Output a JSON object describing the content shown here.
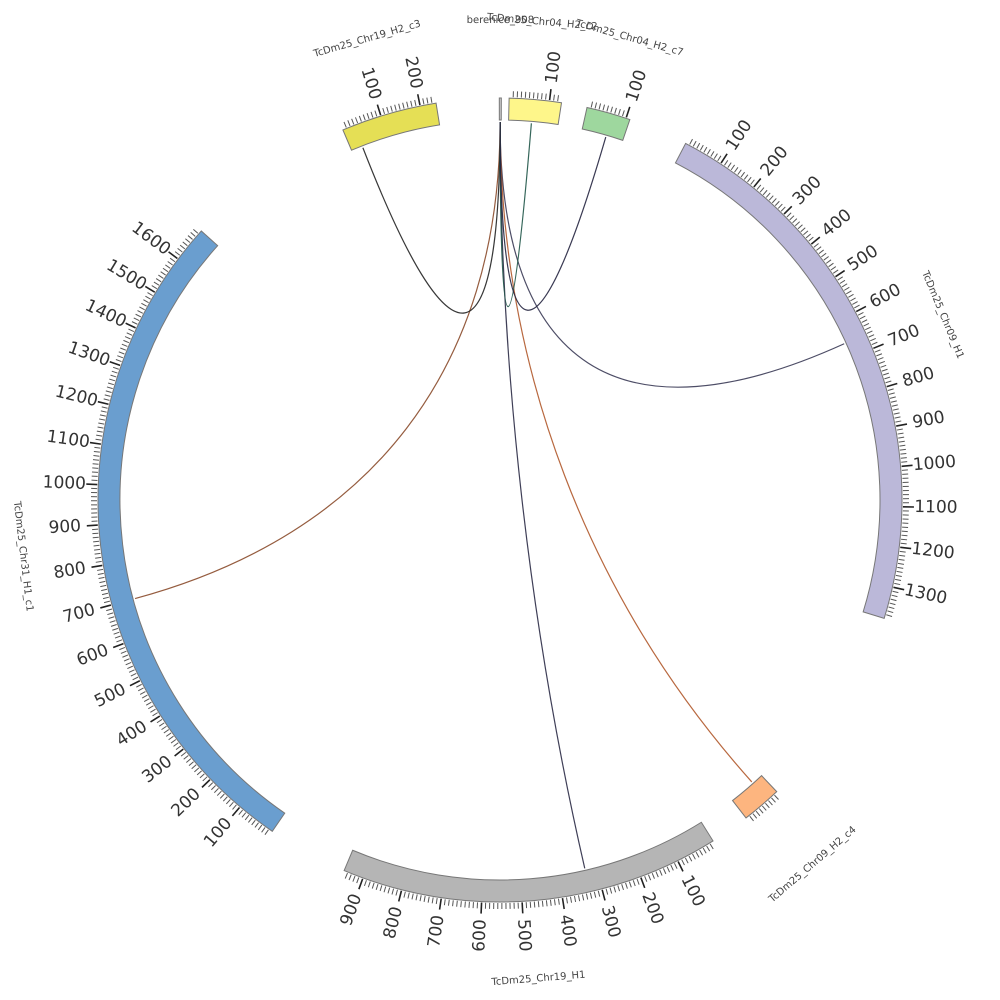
{
  "chart_data": {
    "type": "chord",
    "title": "",
    "unit_note": "",
    "segments": [
      {
        "id": "chr09h1",
        "name": "TcDm25_Chr09_H1",
        "length": 1380,
        "color": "#bbb8d9",
        "start_angle": 27.5,
        "tick_step": 100,
        "minor_step": 10
      },
      {
        "id": "chr09c4",
        "name": "TcDm25_Chr09_H2_c4",
        "length": 100,
        "color": "#fdb57f",
        "start_angle": 136.5,
        "tick_step": 100,
        "minor_step": 10
      },
      {
        "id": "chr19h1",
        "name": "TcDm25_Chr19_H1",
        "length": 950,
        "color": "#b5b5b5",
        "start_angle": 148.0,
        "tick_step": 100,
        "minor_step": 10
      },
      {
        "id": "chr31",
        "name": "TcDm25_Chr31_H1_c1",
        "length": 1690,
        "color": "#6a9ecf",
        "start_angle": 214.5,
        "tick_step": 100,
        "minor_step": 10
      },
      {
        "id": "chr19c3",
        "name": "TcDm25_Chr19_H2_c3",
        "length": 240,
        "color": "#e5df55",
        "start_angle": 337.0,
        "tick_step": 100,
        "minor_step": 10
      },
      {
        "id": "bere",
        "name": "berenice_908",
        "length": 5,
        "color": "#cccccc",
        "start_angle": 359.9,
        "tick_step": 100,
        "minor_step": 10
      },
      {
        "id": "chr04c2",
        "name": "TcDm25_Chr04_H2_c2",
        "length": 130,
        "color": "#fef68a",
        "start_angle": 1.3,
        "tick_step": 100,
        "minor_step": 10
      },
      {
        "id": "chr04c7",
        "name": "TcDm25_Chr04_H2_c7",
        "length": 110,
        "color": "#9ed79e",
        "start_angle": 12.5,
        "tick_step": 100,
        "minor_step": 10
      }
    ],
    "links": [
      {
        "from": "bere",
        "from_pos": 2,
        "to": "chr31",
        "to_pos": 700,
        "color": "#8a4a2a"
      },
      {
        "from": "bere",
        "from_pos": 2,
        "to": "chr09h1",
        "to_pos": 660,
        "color": "#3a3a55"
      },
      {
        "from": "bere",
        "from_pos": 2,
        "to": "chr09c4",
        "to_pos": 30,
        "color": "#b0582a"
      },
      {
        "from": "bere",
        "from_pos": 2,
        "to": "chr19h1",
        "to_pos": 330,
        "color": "#2a2a45"
      },
      {
        "from": "bere",
        "from_pos": 2,
        "to": "chr19c3",
        "to_pos": 30,
        "color": "#222222"
      },
      {
        "from": "bere",
        "from_pos": 2,
        "to": "chr04c2",
        "to_pos": 60,
        "color": "#1f5548"
      },
      {
        "from": "bere",
        "from_pos": 2,
        "to": "chr04c7",
        "to_pos": 65,
        "color": "#252540"
      }
    ]
  }
}
